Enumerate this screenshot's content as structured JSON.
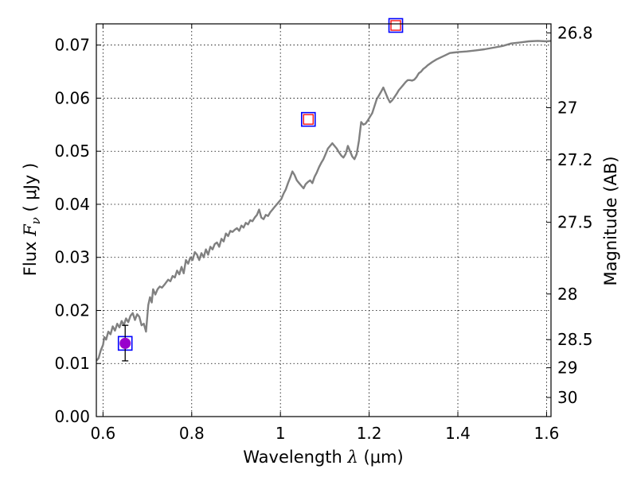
{
  "chart_data": {
    "type": "line",
    "xlabel": {
      "prefix": "Wavelength  ",
      "symbol": "λ",
      "units": " (μm)"
    },
    "ylabel": {
      "prefix": "Flux  ",
      "symbol": "F",
      "subscript": "ν",
      "units": "  ( μJy )"
    },
    "y2label": "Magnitude (AB)",
    "xlim": [
      0.585,
      1.61
    ],
    "ylim": [
      0.0,
      0.074
    ],
    "grid": true,
    "x_ticks": [
      {
        "value": 0.6,
        "label": "0.6"
      },
      {
        "value": 0.8,
        "label": "0.8"
      },
      {
        "value": 1.0,
        "label": "1"
      },
      {
        "value": 1.2,
        "label": "1.2"
      },
      {
        "value": 1.4,
        "label": "1.4"
      },
      {
        "value": 1.6,
        "label": "1.6"
      }
    ],
    "y_ticks": [
      {
        "value": 0.0,
        "label": "0.00"
      },
      {
        "value": 0.01,
        "label": "0.01"
      },
      {
        "value": 0.02,
        "label": "0.02"
      },
      {
        "value": 0.03,
        "label": "0.03"
      },
      {
        "value": 0.04,
        "label": "0.04"
      },
      {
        "value": 0.05,
        "label": "0.05"
      },
      {
        "value": 0.06,
        "label": "0.06"
      },
      {
        "value": 0.07,
        "label": "0.07"
      }
    ],
    "y2_ticks": [
      {
        "flux": 0.0723,
        "label": "26.8"
      },
      {
        "flux": 0.0582,
        "label": "27"
      },
      {
        "flux": 0.0484,
        "label": "27.2"
      },
      {
        "flux": 0.0366,
        "label": "27.5"
      },
      {
        "flux": 0.0231,
        "label": "28"
      },
      {
        "flux": 0.0145,
        "label": "28.5"
      },
      {
        "flux": 0.0092,
        "label": "29"
      },
      {
        "flux": 0.0036,
        "label": "30"
      }
    ],
    "series": [
      {
        "kind": "line",
        "color": "#808080",
        "x": [
          0.585,
          0.59,
          0.595,
          0.6,
          0.603,
          0.607,
          0.612,
          0.617,
          0.622,
          0.627,
          0.632,
          0.637,
          0.642,
          0.647,
          0.652,
          0.657,
          0.662,
          0.667,
          0.672,
          0.677,
          0.682,
          0.687,
          0.692,
          0.697,
          0.702,
          0.706,
          0.71,
          0.713,
          0.718,
          0.723,
          0.728,
          0.733,
          0.74,
          0.747,
          0.752,
          0.757,
          0.762,
          0.767,
          0.772,
          0.777,
          0.782,
          0.787,
          0.792,
          0.797,
          0.802,
          0.807,
          0.812,
          0.817,
          0.822,
          0.827,
          0.832,
          0.837,
          0.842,
          0.847,
          0.852,
          0.857,
          0.862,
          0.867,
          0.872,
          0.877,
          0.882,
          0.887,
          0.892,
          0.897,
          0.902,
          0.907,
          0.912,
          0.917,
          0.922,
          0.927,
          0.932,
          0.937,
          0.942,
          0.947,
          0.952,
          0.957,
          0.962,
          0.967,
          0.972,
          0.977,
          0.982,
          0.987,
          0.992,
          0.997,
          1.002,
          1.007,
          1.012,
          1.017,
          1.022,
          1.027,
          1.032,
          1.037,
          1.042,
          1.047,
          1.052,
          1.057,
          1.062,
          1.067,
          1.072,
          1.077,
          1.082,
          1.087,
          1.092,
          1.097,
          1.102,
          1.107,
          1.112,
          1.117,
          1.122,
          1.127,
          1.132,
          1.137,
          1.142,
          1.147,
          1.152,
          1.157,
          1.162,
          1.167,
          1.172,
          1.177,
          1.182,
          1.187,
          1.192,
          1.197,
          1.202,
          1.207,
          1.212,
          1.217,
          1.222,
          1.227,
          1.232,
          1.237,
          1.242,
          1.247,
          1.252,
          1.257,
          1.262,
          1.267,
          1.272,
          1.277,
          1.282,
          1.287,
          1.292,
          1.297,
          1.302,
          1.307,
          1.312,
          1.317,
          1.322,
          1.327,
          1.332,
          1.342,
          1.352,
          1.362,
          1.372,
          1.382,
          1.392,
          1.402,
          1.42,
          1.44,
          1.46,
          1.48,
          1.5,
          1.52,
          1.54,
          1.56,
          1.58,
          1.6,
          1.61
        ],
        "y": [
          0.0105,
          0.011,
          0.0125,
          0.0135,
          0.015,
          0.0145,
          0.016,
          0.0155,
          0.017,
          0.0162,
          0.0175,
          0.0168,
          0.018,
          0.0172,
          0.0185,
          0.0178,
          0.019,
          0.0195,
          0.0182,
          0.0193,
          0.0188,
          0.0172,
          0.0175,
          0.016,
          0.021,
          0.0225,
          0.0215,
          0.024,
          0.023,
          0.024,
          0.0245,
          0.0243,
          0.025,
          0.0258,
          0.0255,
          0.0265,
          0.0262,
          0.0275,
          0.0268,
          0.0282,
          0.027,
          0.0295,
          0.0288,
          0.03,
          0.0295,
          0.031,
          0.0305,
          0.0295,
          0.0308,
          0.03,
          0.0315,
          0.0305,
          0.032,
          0.0315,
          0.0325,
          0.0328,
          0.032,
          0.0335,
          0.033,
          0.0345,
          0.034,
          0.035,
          0.0348,
          0.0352,
          0.0355,
          0.035,
          0.036,
          0.0356,
          0.0365,
          0.0362,
          0.037,
          0.0368,
          0.0375,
          0.038,
          0.039,
          0.0375,
          0.0372,
          0.038,
          0.0378,
          0.0385,
          0.039,
          0.0395,
          0.04,
          0.0405,
          0.041,
          0.042,
          0.0428,
          0.044,
          0.045,
          0.0462,
          0.0455,
          0.0445,
          0.044,
          0.0435,
          0.043,
          0.0438,
          0.0442,
          0.0445,
          0.044,
          0.0452,
          0.046,
          0.047,
          0.0478,
          0.0485,
          0.0495,
          0.0505,
          0.051,
          0.0515,
          0.051,
          0.0505,
          0.0498,
          0.0492,
          0.0488,
          0.0495,
          0.051,
          0.05,
          0.049,
          0.0485,
          0.0495,
          0.052,
          0.0555,
          0.055,
          0.0552,
          0.0558,
          0.0565,
          0.0572,
          0.0585,
          0.0598,
          0.0605,
          0.0612,
          0.062,
          0.061,
          0.06,
          0.0592,
          0.0596,
          0.0602,
          0.0608,
          0.0615,
          0.062,
          0.0625,
          0.063,
          0.0634,
          0.0634,
          0.0633,
          0.0635,
          0.064,
          0.0647,
          0.065,
          0.0655,
          0.0658,
          0.0662,
          0.0668,
          0.0673,
          0.0677,
          0.0681,
          0.0685,
          0.0686,
          0.0687,
          0.0688,
          0.069,
          0.0692,
          0.0695,
          0.0698,
          0.0703,
          0.0705,
          0.0707,
          0.0708,
          0.0707,
          0.0708
        ]
      },
      {
        "kind": "square-marker",
        "edge_color": "#0000ff",
        "x": [
          0.65,
          1.063,
          1.26
        ],
        "y": [
          0.0138,
          0.056,
          0.0737
        ]
      },
      {
        "kind": "square-marker-inner",
        "edge_color": "#ff0000",
        "x": [
          1.063,
          1.26
        ],
        "y": [
          0.056,
          0.0737
        ]
      },
      {
        "kind": "circle-marker",
        "color": "#9900cc",
        "x": [
          0.65
        ],
        "y": [
          0.0138
        ],
        "yerr_low": [
          0.0105
        ],
        "yerr_high": [
          0.0172
        ]
      }
    ]
  }
}
